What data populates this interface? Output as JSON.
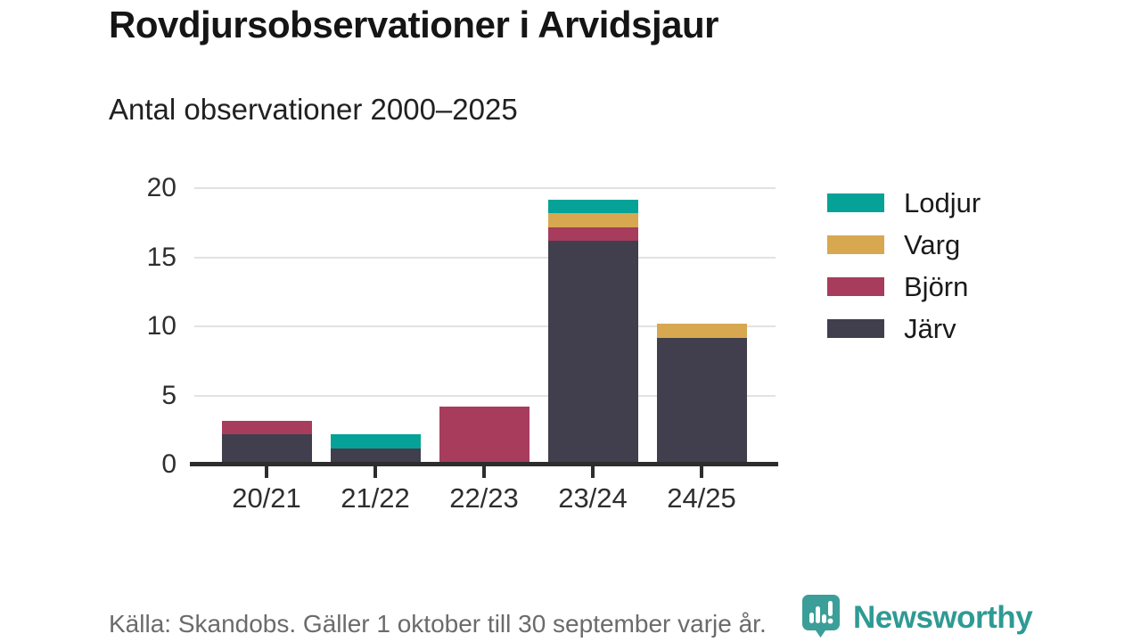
{
  "header": {
    "title": "Rovdjursobservationer i Arvidsjaur",
    "subtitle": "Antal observationer 2000–2025"
  },
  "chart_data": {
    "type": "bar",
    "stacked": true,
    "title": "Rovdjursobservationer i Arvidsjaur",
    "subtitle": "Antal observationer 2000–2025",
    "categories": [
      "20/21",
      "21/22",
      "22/23",
      "23/24",
      "24/25"
    ],
    "series": [
      {
        "name": "Lodjur",
        "color": "#06A298",
        "values": [
          0,
          1,
          0,
          1,
          0
        ]
      },
      {
        "name": "Varg",
        "color": "#D7A850",
        "values": [
          0,
          0,
          0,
          1,
          1
        ]
      },
      {
        "name": "Björn",
        "color": "#A73C5D",
        "values": [
          1,
          0,
          4,
          1,
          0
        ]
      },
      {
        "name": "Järv",
        "color": "#413E4D",
        "values": [
          2,
          1,
          0,
          16,
          9
        ]
      }
    ],
    "stack_order_bottom_to_top": [
      "Järv",
      "Björn",
      "Varg",
      "Lodjur"
    ],
    "totals_per_category": [
      3,
      2,
      4,
      19,
      10
    ],
    "y_ticks": [
      0,
      5,
      10,
      15,
      20
    ],
    "ylim": [
      0,
      20
    ],
    "xlabel": "",
    "ylabel": "",
    "grid": "horizontal",
    "legend_position": "right"
  },
  "footer": {
    "source": "Källa: Skandobs. Gäller 1 oktober till 30 september varje år.",
    "brand_name": "Newsworthy",
    "brand_color": "#2F9A94",
    "logo_icon": "bar-chart-speech-bubble"
  }
}
